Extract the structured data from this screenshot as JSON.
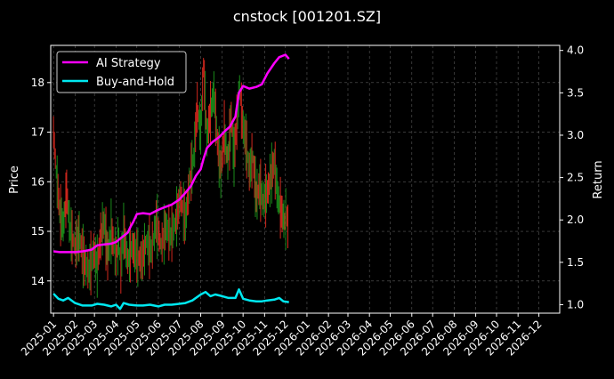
{
  "chart_data": {
    "type": "line",
    "title": "cnstock [001201.SZ]",
    "ylabel_left": "Price",
    "ylabel_right": "Return",
    "xlabel": "",
    "left_ylim": [
      13.35,
      18.75
    ],
    "right_ylim": [
      0.9,
      4.06
    ],
    "left_yticks": [
      14,
      15,
      16,
      17,
      18
    ],
    "right_yticks": [
      1.0,
      1.5,
      2.0,
      2.5,
      3.0,
      3.5,
      4.0
    ],
    "x_ticks": [
      "2025-01",
      "2025-02",
      "2025-03",
      "2025-04",
      "2025-05",
      "2025-06",
      "2025-07",
      "2025-08",
      "2025-09",
      "2025-10",
      "2025-11",
      "2025-12",
      "2026-01",
      "2026-02",
      "2026-03",
      "2026-04",
      "2026-05",
      "2026-06",
      "2026-07",
      "2026-08",
      "2026-09",
      "2026-10",
      "2026-11",
      "2026-12"
    ],
    "grid": true,
    "legend_position": "top-left",
    "background": "#000000",
    "colors": {
      "up": "#1a8a1a",
      "down": "#d0271d",
      "ai_strategy": "#ff00ff",
      "buy_and_hold": "#00e8f0",
      "text": "#ffffff",
      "grid": "#5a5a5a"
    },
    "series": [
      {
        "name": "AI Strategy",
        "axis": "right",
        "points": [
          [
            "2025-01-01",
            1.63
          ],
          [
            "2025-01-10",
            1.62
          ],
          [
            "2025-01-20",
            1.62
          ],
          [
            "2025-02-01",
            1.62
          ],
          [
            "2025-02-12",
            1.63
          ],
          [
            "2025-02-25",
            1.65
          ],
          [
            "2025-03-05",
            1.7
          ],
          [
            "2025-03-15",
            1.71
          ],
          [
            "2025-03-25",
            1.72
          ],
          [
            "2025-04-01",
            1.74
          ],
          [
            "2025-04-10",
            1.8
          ],
          [
            "2025-04-18",
            1.85
          ],
          [
            "2025-04-22",
            1.92
          ],
          [
            "2025-04-26",
            1.98
          ],
          [
            "2025-05-01",
            2.07
          ],
          [
            "2025-05-10",
            2.08
          ],
          [
            "2025-05-20",
            2.07
          ],
          [
            "2025-06-01",
            2.12
          ],
          [
            "2025-06-10",
            2.15
          ],
          [
            "2025-06-20",
            2.18
          ],
          [
            "2025-07-01",
            2.24
          ],
          [
            "2025-07-10",
            2.32
          ],
          [
            "2025-07-18",
            2.4
          ],
          [
            "2025-07-25",
            2.52
          ],
          [
            "2025-08-01",
            2.6
          ],
          [
            "2025-08-05",
            2.72
          ],
          [
            "2025-08-10",
            2.85
          ],
          [
            "2025-08-18",
            2.92
          ],
          [
            "2025-08-28",
            2.98
          ],
          [
            "2025-09-05",
            3.05
          ],
          [
            "2025-09-12",
            3.1
          ],
          [
            "2025-09-20",
            3.22
          ],
          [
            "2025-09-25",
            3.5
          ],
          [
            "2025-10-01",
            3.58
          ],
          [
            "2025-10-10",
            3.55
          ],
          [
            "2025-10-20",
            3.57
          ],
          [
            "2025-10-28",
            3.6
          ],
          [
            "2025-11-05",
            3.73
          ],
          [
            "2025-11-15",
            3.85
          ],
          [
            "2025-11-22",
            3.92
          ],
          [
            "2025-12-01",
            3.95
          ],
          [
            "2025-12-06",
            3.9
          ]
        ]
      },
      {
        "name": "Buy-and-Hold",
        "axis": "right",
        "points": [
          [
            "2025-01-01",
            1.13
          ],
          [
            "2025-01-08",
            1.07
          ],
          [
            "2025-01-15",
            1.05
          ],
          [
            "2025-01-22",
            1.08
          ],
          [
            "2025-02-01",
            1.02
          ],
          [
            "2025-02-12",
            0.99
          ],
          [
            "2025-02-25",
            0.99
          ],
          [
            "2025-03-05",
            1.01
          ],
          [
            "2025-03-15",
            1.0
          ],
          [
            "2025-03-25",
            0.98
          ],
          [
            "2025-04-01",
            1.0
          ],
          [
            "2025-04-07",
            0.95
          ],
          [
            "2025-04-12",
            1.02
          ],
          [
            "2025-04-20",
            1.0
          ],
          [
            "2025-05-01",
            0.99
          ],
          [
            "2025-05-10",
            0.99
          ],
          [
            "2025-05-20",
            1.0
          ],
          [
            "2025-06-01",
            0.98
          ],
          [
            "2025-06-10",
            1.0
          ],
          [
            "2025-06-20",
            1.0
          ],
          [
            "2025-07-01",
            1.01
          ],
          [
            "2025-07-10",
            1.02
          ],
          [
            "2025-07-20",
            1.05
          ],
          [
            "2025-08-01",
            1.12
          ],
          [
            "2025-08-08",
            1.15
          ],
          [
            "2025-08-15",
            1.1
          ],
          [
            "2025-08-22",
            1.12
          ],
          [
            "2025-09-01",
            1.1
          ],
          [
            "2025-09-10",
            1.08
          ],
          [
            "2025-09-20",
            1.08
          ],
          [
            "2025-09-25",
            1.18
          ],
          [
            "2025-10-01",
            1.07
          ],
          [
            "2025-10-10",
            1.05
          ],
          [
            "2025-10-20",
            1.04
          ],
          [
            "2025-10-28",
            1.04
          ],
          [
            "2025-11-05",
            1.05
          ],
          [
            "2025-11-15",
            1.06
          ],
          [
            "2025-11-22",
            1.08
          ],
          [
            "2025-11-28",
            1.04
          ],
          [
            "2025-12-06",
            1.03
          ]
        ]
      },
      {
        "name": "",
        "axis": "left",
        "style": "price-bars",
        "points": [
          [
            "2025-01-01",
            17.0
          ],
          [
            "2025-01-05",
            16.2
          ],
          [
            "2025-01-10",
            15.4
          ],
          [
            "2025-01-15",
            15.1
          ],
          [
            "2025-01-20",
            15.8
          ],
          [
            "2025-01-25",
            15.0
          ],
          [
            "2025-02-01",
            14.7
          ],
          [
            "2025-02-07",
            14.9
          ],
          [
            "2025-02-14",
            14.4
          ],
          [
            "2025-02-21",
            14.2
          ],
          [
            "2025-02-28",
            14.6
          ],
          [
            "2025-03-05",
            14.3
          ],
          [
            "2025-03-10",
            14.9
          ],
          [
            "2025-03-15",
            15.2
          ],
          [
            "2025-03-20",
            14.5
          ],
          [
            "2025-03-25",
            15.0
          ],
          [
            "2025-04-01",
            14.5
          ],
          [
            "2025-04-05",
            14.8
          ],
          [
            "2025-04-08",
            14.3
          ],
          [
            "2025-04-12",
            15.0
          ],
          [
            "2025-04-18",
            14.4
          ],
          [
            "2025-04-24",
            14.7
          ],
          [
            "2025-05-01",
            14.5
          ],
          [
            "2025-05-08",
            14.4
          ],
          [
            "2025-05-15",
            14.8
          ],
          [
            "2025-05-22",
            14.6
          ],
          [
            "2025-05-29",
            15.2
          ],
          [
            "2025-06-05",
            14.7
          ],
          [
            "2025-06-12",
            15.1
          ],
          [
            "2025-06-19",
            14.9
          ],
          [
            "2025-06-26",
            15.2
          ],
          [
            "2025-07-03",
            15.7
          ],
          [
            "2025-07-10",
            15.2
          ],
          [
            "2025-07-17",
            16.1
          ],
          [
            "2025-07-22",
            16.5
          ],
          [
            "2025-07-27",
            17.5
          ],
          [
            "2025-08-01",
            17.0
          ],
          [
            "2025-08-05",
            18.3
          ],
          [
            "2025-08-10",
            16.9
          ],
          [
            "2025-08-15",
            17.4
          ],
          [
            "2025-08-20",
            17.8
          ],
          [
            "2025-08-25",
            16.8
          ],
          [
            "2025-08-30",
            16.2
          ],
          [
            "2025-09-04",
            17.0
          ],
          [
            "2025-09-09",
            16.4
          ],
          [
            "2025-09-14",
            17.3
          ],
          [
            "2025-09-18",
            16.5
          ],
          [
            "2025-09-22",
            17.2
          ],
          [
            "2025-09-26",
            17.9
          ],
          [
            "2025-09-30",
            17.2
          ],
          [
            "2025-10-05",
            16.8
          ],
          [
            "2025-10-10",
            16.2
          ],
          [
            "2025-10-15",
            16.5
          ],
          [
            "2025-10-20",
            15.7
          ],
          [
            "2025-10-25",
            15.9
          ],
          [
            "2025-10-30",
            15.6
          ],
          [
            "2025-11-05",
            15.8
          ],
          [
            "2025-11-10",
            16.1
          ],
          [
            "2025-11-15",
            16.4
          ],
          [
            "2025-11-20",
            15.7
          ],
          [
            "2025-11-25",
            15.4
          ],
          [
            "2025-11-30",
            15.2
          ],
          [
            "2025-12-03",
            15.3
          ],
          [
            "2025-12-06",
            14.9
          ]
        ]
      }
    ]
  },
  "legend": {
    "items": [
      {
        "label": "AI Strategy",
        "color": "#ff00ff"
      },
      {
        "label": "Buy-and-Hold",
        "color": "#00e8f0"
      }
    ]
  }
}
